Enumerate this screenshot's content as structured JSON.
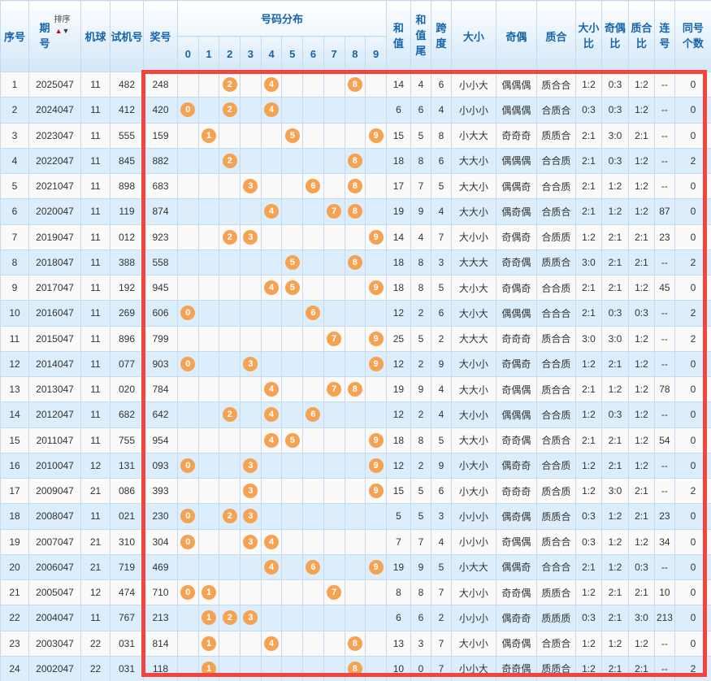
{
  "columns": {
    "serial": "序号",
    "period_line1": "期",
    "period_line2": "号",
    "sort_label": "排序",
    "machine": "机球",
    "test_number": "试机号",
    "prize_number": "奖号",
    "distribution": "号码分布",
    "digits": [
      "0",
      "1",
      "2",
      "3",
      "4",
      "5",
      "6",
      "7",
      "8",
      "9"
    ],
    "sum_line1": "和",
    "sum_line2": "值",
    "sum_tail_line1": "和",
    "sum_tail_line2": "值",
    "sum_tail_line3": "尾",
    "span_line1": "跨",
    "span_line2": "度",
    "size": "大小",
    "parity": "奇偶",
    "prime": "质合",
    "size_ratio_line1": "大小",
    "size_ratio_line2": "比",
    "parity_ratio_line1": "奇偶",
    "parity_ratio_line2": "比",
    "prime_ratio_line1": "质合",
    "prime_ratio_line2": "比",
    "consecutive_line1": "连",
    "consecutive_line2": "号",
    "same_count_line1": "同号",
    "same_count_line2": "个数"
  },
  "colors": {
    "header_text": "#1565ab",
    "ball": "#f5a352",
    "ball_text": "#ffffff",
    "row_odd_bg": "#fafafa",
    "row_even_bg": "#dceefb",
    "distribution_bg": "#fdf9e3",
    "cell_border": "#c5daed",
    "highlight_frame": "#f5433d",
    "sort_up_arrow": "#b01515",
    "sort_down_arrow": "#3a3a3a"
  },
  "rows": [
    {
      "serial": "1",
      "period": "2025047",
      "machine": "11",
      "test": "482",
      "prize": "248",
      "balls": [
        2,
        4,
        8
      ],
      "sum": "14",
      "sum_tail": "4",
      "span": "6",
      "size": "小小大",
      "parity": "偶偶偶",
      "prime": "质合合",
      "size_ratio": "1:2",
      "parity_ratio": "0:3",
      "prime_ratio": "1:2",
      "consecutive": "--",
      "same_count": "0"
    },
    {
      "serial": "2",
      "period": "2024047",
      "machine": "11",
      "test": "412",
      "prize": "420",
      "balls": [
        0,
        2,
        4
      ],
      "sum": "6",
      "sum_tail": "6",
      "span": "4",
      "size": "小小小",
      "parity": "偶偶偶",
      "prime": "合质合",
      "size_ratio": "0:3",
      "parity_ratio": "0:3",
      "prime_ratio": "1:2",
      "consecutive": "--",
      "same_count": "0"
    },
    {
      "serial": "3",
      "period": "2023047",
      "machine": "11",
      "test": "555",
      "prize": "159",
      "balls": [
        1,
        5,
        9
      ],
      "sum": "15",
      "sum_tail": "5",
      "span": "8",
      "size": "小大大",
      "parity": "奇奇奇",
      "prime": "质质合",
      "size_ratio": "2:1",
      "parity_ratio": "3:0",
      "prime_ratio": "2:1",
      "consecutive": "--",
      "same_count": "0"
    },
    {
      "serial": "4",
      "period": "2022047",
      "machine": "11",
      "test": "845",
      "prize": "882",
      "balls": [
        2,
        8
      ],
      "sum": "18",
      "sum_tail": "8",
      "span": "6",
      "size": "大大小",
      "parity": "偶偶偶",
      "prime": "合合质",
      "size_ratio": "2:1",
      "parity_ratio": "0:3",
      "prime_ratio": "1:2",
      "consecutive": "--",
      "same_count": "2"
    },
    {
      "serial": "5",
      "period": "2021047",
      "machine": "11",
      "test": "898",
      "prize": "683",
      "balls": [
        3,
        6,
        8
      ],
      "sum": "17",
      "sum_tail": "7",
      "span": "5",
      "size": "大大小",
      "parity": "偶偶奇",
      "prime": "合合质",
      "size_ratio": "2:1",
      "parity_ratio": "1:2",
      "prime_ratio": "1:2",
      "consecutive": "--",
      "same_count": "0"
    },
    {
      "serial": "6",
      "period": "2020047",
      "machine": "11",
      "test": "119",
      "prize": "874",
      "balls": [
        4,
        7,
        8
      ],
      "sum": "19",
      "sum_tail": "9",
      "span": "4",
      "size": "大大小",
      "parity": "偶奇偶",
      "prime": "合质合",
      "size_ratio": "2:1",
      "parity_ratio": "1:2",
      "prime_ratio": "1:2",
      "consecutive": "87",
      "same_count": "0"
    },
    {
      "serial": "7",
      "period": "2019047",
      "machine": "11",
      "test": "012",
      "prize": "923",
      "balls": [
        2,
        3,
        9
      ],
      "sum": "14",
      "sum_tail": "4",
      "span": "7",
      "size": "大小小",
      "parity": "奇偶奇",
      "prime": "合质质",
      "size_ratio": "1:2",
      "parity_ratio": "2:1",
      "prime_ratio": "2:1",
      "consecutive": "23",
      "same_count": "0"
    },
    {
      "serial": "8",
      "period": "2018047",
      "machine": "11",
      "test": "388",
      "prize": "558",
      "balls": [
        5,
        8
      ],
      "sum": "18",
      "sum_tail": "8",
      "span": "3",
      "size": "大大大",
      "parity": "奇奇偶",
      "prime": "质质合",
      "size_ratio": "3:0",
      "parity_ratio": "2:1",
      "prime_ratio": "2:1",
      "consecutive": "--",
      "same_count": "2"
    },
    {
      "serial": "9",
      "period": "2017047",
      "machine": "11",
      "test": "192",
      "prize": "945",
      "balls": [
        4,
        5,
        9
      ],
      "sum": "18",
      "sum_tail": "8",
      "span": "5",
      "size": "大小大",
      "parity": "奇偶奇",
      "prime": "合合质",
      "size_ratio": "2:1",
      "parity_ratio": "2:1",
      "prime_ratio": "1:2",
      "consecutive": "45",
      "same_count": "0"
    },
    {
      "serial": "10",
      "period": "2016047",
      "machine": "11",
      "test": "269",
      "prize": "606",
      "balls": [
        0,
        6
      ],
      "sum": "12",
      "sum_tail": "2",
      "span": "6",
      "size": "大小大",
      "parity": "偶偶偶",
      "prime": "合合合",
      "size_ratio": "2:1",
      "parity_ratio": "0:3",
      "prime_ratio": "0:3",
      "consecutive": "--",
      "same_count": "2"
    },
    {
      "serial": "11",
      "period": "2015047",
      "machine": "11",
      "test": "896",
      "prize": "799",
      "balls": [
        7,
        9
      ],
      "sum": "25",
      "sum_tail": "5",
      "span": "2",
      "size": "大大大",
      "parity": "奇奇奇",
      "prime": "质合合",
      "size_ratio": "3:0",
      "parity_ratio": "3:0",
      "prime_ratio": "1:2",
      "consecutive": "--",
      "same_count": "2"
    },
    {
      "serial": "12",
      "period": "2014047",
      "machine": "11",
      "test": "077",
      "prize": "903",
      "balls": [
        0,
        3,
        9
      ],
      "sum": "12",
      "sum_tail": "2",
      "span": "9",
      "size": "大小小",
      "parity": "奇偶奇",
      "prime": "合合质",
      "size_ratio": "1:2",
      "parity_ratio": "2:1",
      "prime_ratio": "1:2",
      "consecutive": "--",
      "same_count": "0"
    },
    {
      "serial": "13",
      "period": "2013047",
      "machine": "11",
      "test": "020",
      "prize": "784",
      "balls": [
        4,
        7,
        8
      ],
      "sum": "19",
      "sum_tail": "9",
      "span": "4",
      "size": "大大小",
      "parity": "奇偶偶",
      "prime": "质合合",
      "size_ratio": "2:1",
      "parity_ratio": "1:2",
      "prime_ratio": "1:2",
      "consecutive": "78",
      "same_count": "0"
    },
    {
      "serial": "14",
      "period": "2012047",
      "machine": "11",
      "test": "682",
      "prize": "642",
      "balls": [
        2,
        4,
        6
      ],
      "sum": "12",
      "sum_tail": "2",
      "span": "4",
      "size": "大小小",
      "parity": "偶偶偶",
      "prime": "合合质",
      "size_ratio": "1:2",
      "parity_ratio": "0:3",
      "prime_ratio": "1:2",
      "consecutive": "--",
      "same_count": "0"
    },
    {
      "serial": "15",
      "period": "2011047",
      "machine": "11",
      "test": "755",
      "prize": "954",
      "balls": [
        4,
        5,
        9
      ],
      "sum": "18",
      "sum_tail": "8",
      "span": "5",
      "size": "大大小",
      "parity": "奇奇偶",
      "prime": "合质合",
      "size_ratio": "2:1",
      "parity_ratio": "2:1",
      "prime_ratio": "1:2",
      "consecutive": "54",
      "same_count": "0"
    },
    {
      "serial": "16",
      "period": "2010047",
      "machine": "12",
      "test": "131",
      "prize": "093",
      "balls": [
        0,
        3,
        9
      ],
      "sum": "12",
      "sum_tail": "2",
      "span": "9",
      "size": "小大小",
      "parity": "偶奇奇",
      "prime": "合合质",
      "size_ratio": "1:2",
      "parity_ratio": "2:1",
      "prime_ratio": "1:2",
      "consecutive": "--",
      "same_count": "0"
    },
    {
      "serial": "17",
      "period": "2009047",
      "machine": "21",
      "test": "086",
      "prize": "393",
      "balls": [
        3,
        9
      ],
      "sum": "15",
      "sum_tail": "5",
      "span": "6",
      "size": "小大小",
      "parity": "奇奇奇",
      "prime": "质合质",
      "size_ratio": "1:2",
      "parity_ratio": "3:0",
      "prime_ratio": "2:1",
      "consecutive": "--",
      "same_count": "2"
    },
    {
      "serial": "18",
      "period": "2008047",
      "machine": "11",
      "test": "021",
      "prize": "230",
      "balls": [
        0,
        2,
        3
      ],
      "sum": "5",
      "sum_tail": "5",
      "span": "3",
      "size": "小小小",
      "parity": "偶奇偶",
      "prime": "质质合",
      "size_ratio": "0:3",
      "parity_ratio": "1:2",
      "prime_ratio": "2:1",
      "consecutive": "23",
      "same_count": "0"
    },
    {
      "serial": "19",
      "period": "2007047",
      "machine": "21",
      "test": "310",
      "prize": "304",
      "balls": [
        0,
        3,
        4
      ],
      "sum": "7",
      "sum_tail": "7",
      "span": "4",
      "size": "小小小",
      "parity": "奇偶偶",
      "prime": "质合合",
      "size_ratio": "0:3",
      "parity_ratio": "1:2",
      "prime_ratio": "1:2",
      "consecutive": "34",
      "same_count": "0"
    },
    {
      "serial": "20",
      "period": "2006047",
      "machine": "21",
      "test": "719",
      "prize": "469",
      "balls": [
        4,
        6,
        9
      ],
      "sum": "19",
      "sum_tail": "9",
      "span": "5",
      "size": "小大大",
      "parity": "偶偶奇",
      "prime": "合合合",
      "size_ratio": "2:1",
      "parity_ratio": "1:2",
      "prime_ratio": "0:3",
      "consecutive": "--",
      "same_count": "0"
    },
    {
      "serial": "21",
      "period": "2005047",
      "machine": "12",
      "test": "474",
      "prize": "710",
      "balls": [
        0,
        1,
        7
      ],
      "sum": "8",
      "sum_tail": "8",
      "span": "7",
      "size": "大小小",
      "parity": "奇奇偶",
      "prime": "质质合",
      "size_ratio": "1:2",
      "parity_ratio": "2:1",
      "prime_ratio": "2:1",
      "consecutive": "10",
      "same_count": "0"
    },
    {
      "serial": "22",
      "period": "2004047",
      "machine": "11",
      "test": "767",
      "prize": "213",
      "balls": [
        1,
        2,
        3
      ],
      "sum": "6",
      "sum_tail": "6",
      "span": "2",
      "size": "小小小",
      "parity": "偶奇奇",
      "prime": "质质质",
      "size_ratio": "0:3",
      "parity_ratio": "2:1",
      "prime_ratio": "3:0",
      "consecutive": "213",
      "same_count": "0"
    },
    {
      "serial": "23",
      "period": "2003047",
      "machine": "22",
      "test": "031",
      "prize": "814",
      "balls": [
        1,
        4,
        8
      ],
      "sum": "13",
      "sum_tail": "3",
      "span": "7",
      "size": "大小小",
      "parity": "偶奇偶",
      "prime": "合质合",
      "size_ratio": "1:2",
      "parity_ratio": "1:2",
      "prime_ratio": "1:2",
      "consecutive": "--",
      "same_count": "0"
    },
    {
      "serial": "24",
      "period": "2002047",
      "machine": "22",
      "test": "031",
      "prize": "118",
      "balls": [
        1,
        8
      ],
      "sum": "10",
      "sum_tail": "0",
      "span": "7",
      "size": "小小大",
      "parity": "奇奇偶",
      "prime": "质质合",
      "size_ratio": "1:2",
      "parity_ratio": "2:1",
      "prime_ratio": "2:1",
      "consecutive": "--",
      "same_count": "2"
    }
  ]
}
